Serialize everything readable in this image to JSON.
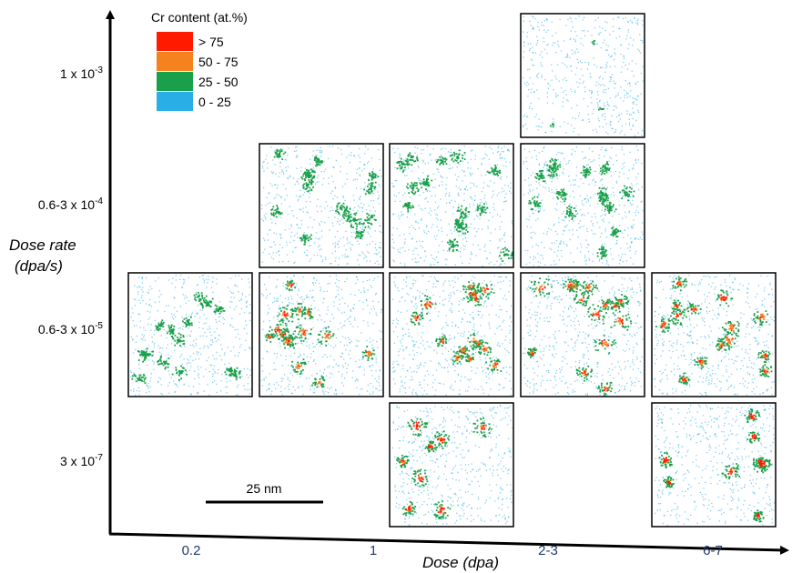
{
  "legend": {
    "title": "Cr content (at.%)",
    "entries": [
      {
        "label": "> 75",
        "color": "#ff1a00"
      },
      {
        "label": "50 - 75",
        "color": "#f5821f"
      },
      {
        "label": "25 - 50",
        "color": "#1aa04a"
      },
      {
        "label": "0 - 25",
        "color": "#2aaee6"
      }
    ]
  },
  "y_axis": {
    "title_lines": [
      "Dose rate",
      "(dpa/s)"
    ],
    "labels": [
      {
        "base": "1 x 10",
        "exp": "-3"
      },
      {
        "base": "0.6-3 x 10",
        "exp": "-4"
      },
      {
        "base": "0.6-3 x 10",
        "exp": "-5"
      },
      {
        "base": "3 x 10",
        "exp": "-7"
      }
    ]
  },
  "x_axis": {
    "title": "Dose (dpa)",
    "labels": [
      "0.2",
      "1",
      "2-3",
      "6-7"
    ]
  },
  "scale_bar": "25 nm"
}
